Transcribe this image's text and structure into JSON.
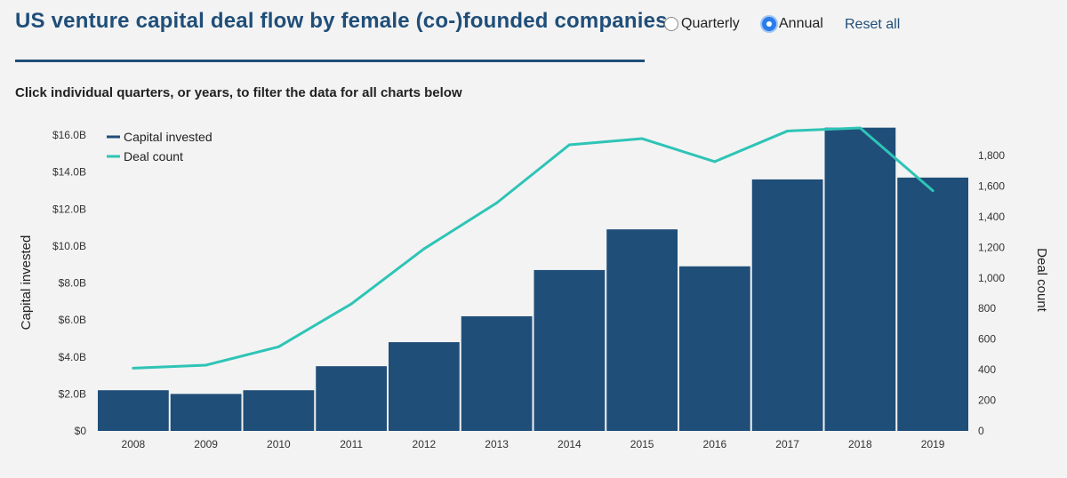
{
  "header": {
    "title": "US venture capital deal flow by female (co-)founded companies",
    "subtitle": "Click individual quarters, or years, to filter the data for all charts below"
  },
  "controls": {
    "quarterly_label": "Quarterly",
    "annual_label": "Annual",
    "selected": "Annual",
    "reset_label": "Reset all"
  },
  "colors": {
    "bars": "#1f4e79",
    "line": "#2ec4b6",
    "title": "#1f4e79",
    "background": "#f3f3f3"
  },
  "chart_data": {
    "type": "bar",
    "categories": [
      "2008",
      "2009",
      "2010",
      "2011",
      "2012",
      "2013",
      "2014",
      "2015",
      "2016",
      "2017",
      "2018",
      "2019"
    ],
    "series": [
      {
        "name": "Capital invested",
        "type": "bar",
        "axis": "left",
        "unit": "$B",
        "values": [
          2.2,
          2.0,
          2.2,
          3.5,
          4.8,
          6.2,
          8.7,
          10.9,
          8.9,
          13.6,
          16.4,
          13.7
        ]
      },
      {
        "name": "Deal count",
        "type": "line",
        "axis": "right",
        "values": [
          410,
          430,
          550,
          830,
          1190,
          1490,
          1870,
          1910,
          1760,
          1960,
          1980,
          1570
        ]
      }
    ],
    "ylabel": "Capital invested",
    "ylabel_right": "Deal count",
    "ylim": [
      0,
      16
    ],
    "ylim_right": [
      0,
      1800
    ],
    "yticks": [
      "$0",
      "$2.0B",
      "$4.0B",
      "$6.0B",
      "$8.0B",
      "$10.0B",
      "$12.0B",
      "$14.0B",
      "$16.0B"
    ],
    "yticks_right": [
      "0",
      "200",
      "400",
      "600",
      "800",
      "1,000",
      "1,200",
      "1,400",
      "1,600",
      "1,800"
    ],
    "legend_position": "top-left",
    "grid": false
  }
}
